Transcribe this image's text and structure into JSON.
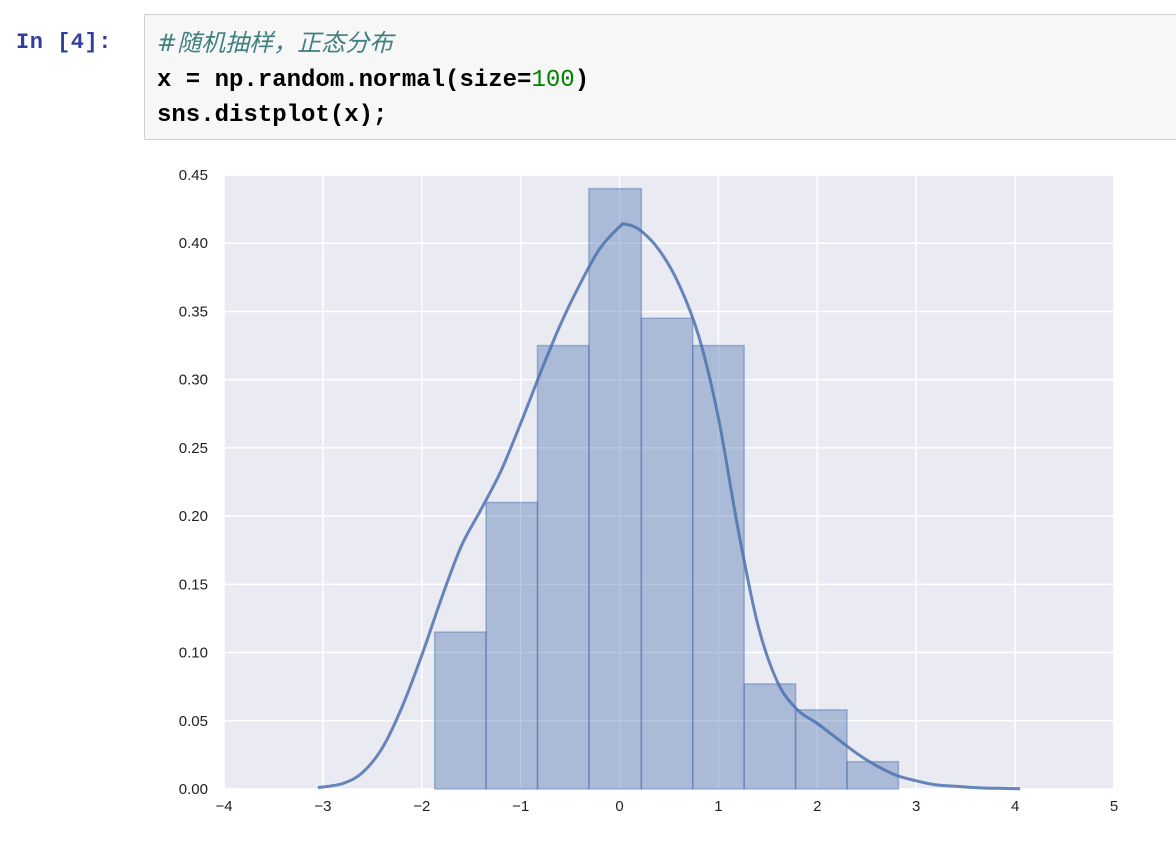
{
  "cell": {
    "prompt": "In [4]:",
    "lines": [
      {
        "comment": "#随机抽样，正态分布"
      },
      {
        "pre": "x = np.random.normal(size=",
        "num": "100",
        "post": ")"
      },
      {
        "pre": "sns.distplot(x);"
      }
    ]
  },
  "colors": {
    "plot_bg": "#eaeaf2",
    "grid": "#ffffff",
    "bar_fill": "#4c72b0",
    "kde_line": "#4c72b0"
  },
  "chart_data": {
    "type": "bar",
    "title": "",
    "xlabel": "",
    "ylabel": "",
    "xlim": [
      -4,
      5
    ],
    "ylim": [
      0,
      0.45
    ],
    "x_ticks": [
      "−4",
      "−3",
      "−2",
      "−1",
      "0",
      "1",
      "2",
      "3",
      "4",
      "5"
    ],
    "y_ticks": [
      "0.00",
      "0.05",
      "0.10",
      "0.15",
      "0.20",
      "0.25",
      "0.30",
      "0.35",
      "0.40",
      "0.45"
    ],
    "grid": true,
    "bin_edges": [
      -1.87,
      -1.35,
      -0.83,
      -0.31,
      0.22,
      0.74,
      1.26,
      1.78,
      2.3,
      2.82
    ],
    "bin_heights": [
      0.115,
      0.21,
      0.325,
      0.44,
      0.345,
      0.325,
      0.077,
      0.058,
      0.02
    ],
    "kde_x": [
      -3.05,
      -2.8,
      -2.6,
      -2.4,
      -2.2,
      -2.0,
      -1.8,
      -1.6,
      -1.4,
      -1.2,
      -1.0,
      -0.8,
      -0.6,
      -0.4,
      -0.2,
      0.0,
      0.05,
      0.2,
      0.4,
      0.6,
      0.8,
      1.0,
      1.2,
      1.4,
      1.6,
      1.8,
      2.0,
      2.2,
      2.4,
      2.6,
      2.8,
      3.0,
      3.2,
      3.4,
      3.6,
      3.8,
      4.05
    ],
    "kde_y": [
      0.001,
      0.004,
      0.012,
      0.03,
      0.06,
      0.098,
      0.14,
      0.178,
      0.205,
      0.233,
      0.268,
      0.305,
      0.34,
      0.37,
      0.396,
      0.412,
      0.414,
      0.41,
      0.395,
      0.37,
      0.332,
      0.272,
      0.19,
      0.12,
      0.078,
      0.058,
      0.048,
      0.037,
      0.026,
      0.017,
      0.01,
      0.006,
      0.003,
      0.002,
      0.001,
      0.0005,
      0.0002
    ]
  }
}
